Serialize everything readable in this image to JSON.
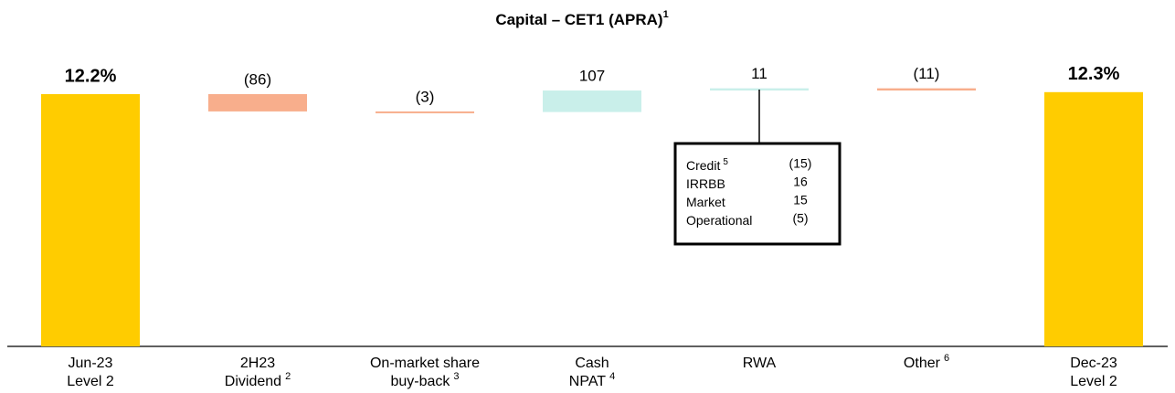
{
  "chart_data": {
    "type": "waterfall",
    "title": "Capital – CET1 (APRA)",
    "title_note": "1",
    "categories": [
      [
        "Jun-23",
        "Level 2"
      ],
      [
        "2H23",
        "Dividend"
      ],
      [
        "On-market share",
        "buy-back"
      ],
      [
        "Cash",
        "NPAT"
      ],
      [
        "RWA"
      ],
      [
        "Other"
      ],
      [
        "Dec-23",
        "Level 2"
      ]
    ],
    "category_notes": [
      null,
      "2",
      "3",
      "4",
      null,
      "6",
      null
    ],
    "measures": [
      "absolute",
      "relative",
      "relative",
      "relative",
      "relative",
      "relative",
      "total"
    ],
    "values": [
      12.2,
      -86,
      -3,
      107,
      11,
      -11,
      12.3
    ],
    "value_labels": [
      "12.2%",
      "(86)",
      "(3)",
      "107",
      "11",
      "(11)",
      "12.3%"
    ],
    "colors": {
      "total": "#ffcc00",
      "decrease": "#f8ae8c",
      "increase": "#c9efea"
    },
    "annotation": {
      "category_index": 4,
      "names": [
        "Credit",
        "IRRBB",
        "Market",
        "Operational"
      ],
      "notes": [
        "5",
        null,
        null,
        null
      ],
      "values": [
        -15,
        16,
        15,
        -5
      ],
      "value_labels": [
        "(15)",
        "16",
        "15",
        "(5)"
      ]
    }
  }
}
